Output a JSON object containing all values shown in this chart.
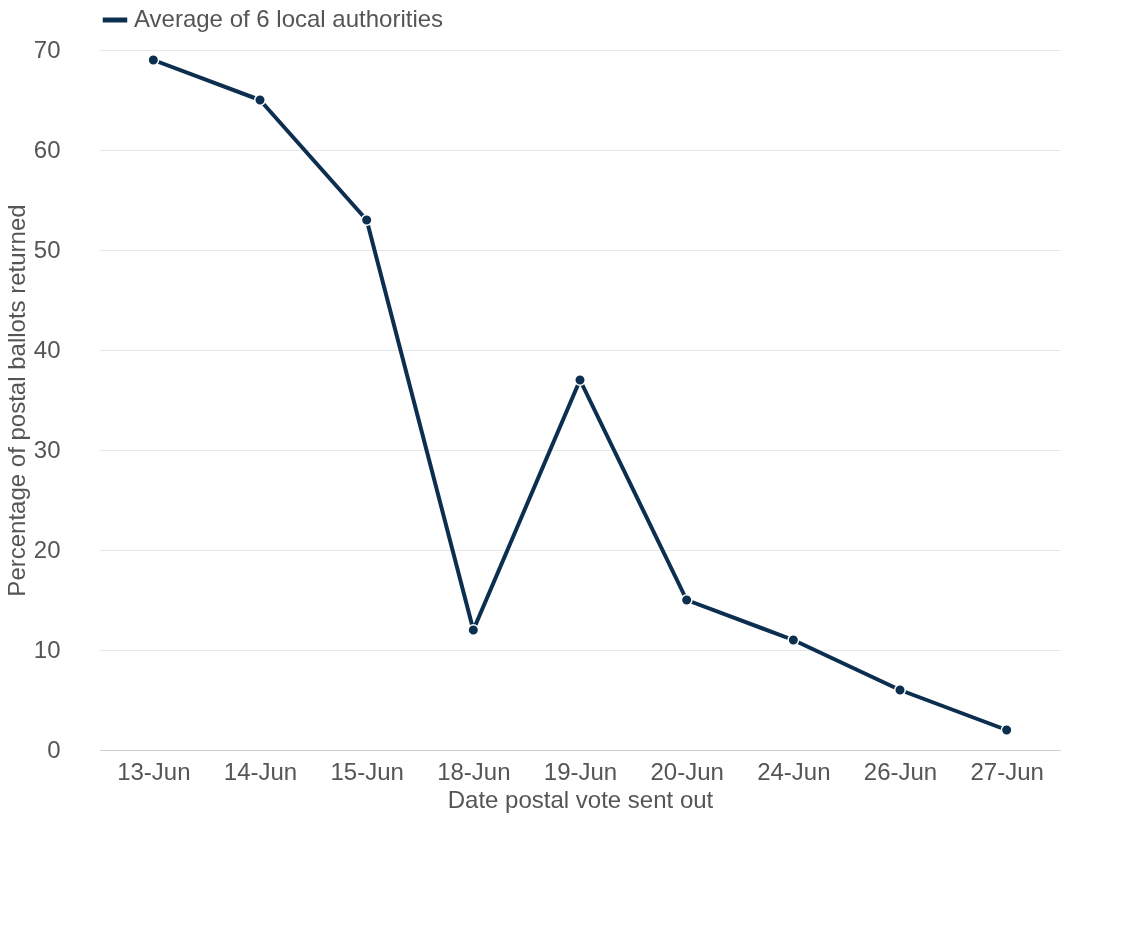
{
  "chart_data": {
    "type": "line",
    "xlabel": "Date postal vote sent out",
    "ylabel": "Percentage of postal ballots returned",
    "categories": [
      "13-Jun",
      "14-Jun",
      "15-Jun",
      "18-Jun",
      "19-Jun",
      "20-Jun",
      "24-Jun",
      "26-Jun",
      "27-Jun"
    ],
    "series": [
      {
        "name": "Average of 6 local authorities",
        "color": "#0c2f4f",
        "values": [
          69,
          65,
          53,
          12,
          37,
          15,
          11,
          6,
          2
        ]
      }
    ],
    "ylim": [
      0,
      70
    ],
    "yticks": [
      0,
      10,
      20,
      30,
      40,
      50,
      60,
      70
    ],
    "grid": "y",
    "legend": "top",
    "marker": "circle",
    "line_style": "solid"
  }
}
